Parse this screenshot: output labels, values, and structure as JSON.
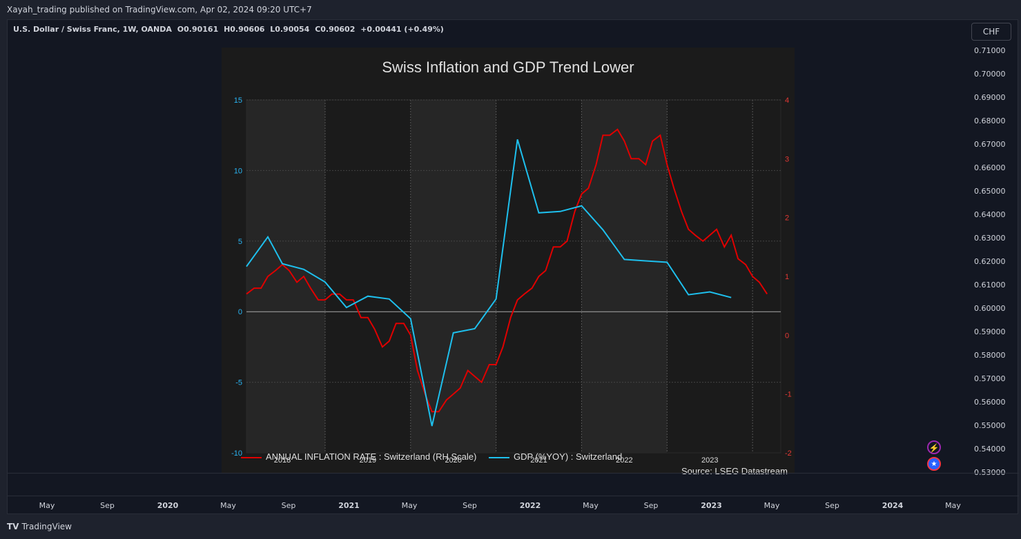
{
  "header": {
    "published": "Xayah_trading published on TradingView.com, Apr 02, 2024 09:20 UTC+7"
  },
  "symbol": {
    "name": "U.S. Dollar / Swiss Franc, 1W, OANDA",
    "open": "O0.90161",
    "high": "H0.90606",
    "low": "L0.90054",
    "close": "C0.90602",
    "change": "+0.00441 (+0.49%)"
  },
  "currency_badge": "CHF",
  "price_scale": [
    "0.71000",
    "0.70000",
    "0.69000",
    "0.68000",
    "0.67000",
    "0.66000",
    "0.65000",
    "0.64000",
    "0.63000",
    "0.62000",
    "0.61000",
    "0.60000",
    "0.59000",
    "0.58000",
    "0.57000",
    "0.56000",
    "0.55000",
    "0.54000",
    "0.53000"
  ],
  "time_axis": [
    {
      "label": "May",
      "year": false
    },
    {
      "label": "Sep",
      "year": false
    },
    {
      "label": "2020",
      "year": true
    },
    {
      "label": "May",
      "year": false
    },
    {
      "label": "Sep",
      "year": false
    },
    {
      "label": "2021",
      "year": true
    },
    {
      "label": "May",
      "year": false
    },
    {
      "label": "Sep",
      "year": false
    },
    {
      "label": "2022",
      "year": true
    },
    {
      "label": "May",
      "year": false
    },
    {
      "label": "Sep",
      "year": false
    },
    {
      "label": "2023",
      "year": true
    },
    {
      "label": "May",
      "year": false
    },
    {
      "label": "Sep",
      "year": false
    },
    {
      "label": "2024",
      "year": true
    },
    {
      "label": "May",
      "year": false
    }
  ],
  "footer": {
    "brand": "TradingView",
    "logo": "TV"
  },
  "icons": {
    "bolt": "bolt-icon",
    "flag": "us-flag-icon"
  },
  "colors": {
    "inflation": "#e00000",
    "gdp": "#1ec0ee",
    "left_axis": "#29b6f6",
    "right_axis": "#e53935"
  },
  "chart_data": {
    "type": "line",
    "title": "Swiss Inflation and GDP Trend Lower",
    "source": "Source: LSEG Datastream",
    "x_labels": [
      "2018",
      "2019",
      "2020",
      "2021",
      "2022",
      "2023"
    ],
    "y_left": {
      "ylim": [
        -10,
        15
      ],
      "ticks": [
        "15",
        "10",
        "5",
        "0",
        "-5",
        "-10"
      ]
    },
    "y_right": {
      "ylim": [
        -2,
        4
      ],
      "ticks": [
        "4",
        "3",
        "2",
        "1",
        "0",
        "-1",
        "-2"
      ]
    },
    "series": [
      {
        "name": "ANNUAL INFLATION RATE : Switzerland (RH Scale)",
        "axis": "right",
        "x": [
          2017.58,
          2017.67,
          2017.75,
          2017.83,
          2017.92,
          2018.0,
          2018.08,
          2018.17,
          2018.25,
          2018.33,
          2018.42,
          2018.5,
          2018.58,
          2018.67,
          2018.75,
          2018.83,
          2018.92,
          2019.0,
          2019.08,
          2019.17,
          2019.25,
          2019.33,
          2019.42,
          2019.5,
          2019.58,
          2019.67,
          2019.75,
          2019.83,
          2019.92,
          2020.0,
          2020.08,
          2020.17,
          2020.25,
          2020.33,
          2020.42,
          2020.5,
          2020.58,
          2020.67,
          2020.75,
          2020.83,
          2020.92,
          2021.0,
          2021.08,
          2021.17,
          2021.25,
          2021.33,
          2021.42,
          2021.5,
          2021.58,
          2021.67,
          2021.75,
          2021.83,
          2021.92,
          2022.0,
          2022.08,
          2022.17,
          2022.25,
          2022.33,
          2022.42,
          2022.5,
          2022.58,
          2022.67,
          2022.75,
          2022.83,
          2022.92,
          2023.0,
          2023.08,
          2023.17,
          2023.25,
          2023.33,
          2023.42,
          2023.5,
          2023.58,
          2023.67
        ],
        "values": [
          0.7,
          0.8,
          0.8,
          1.0,
          1.1,
          1.2,
          1.1,
          0.9,
          1.0,
          0.8,
          0.6,
          0.6,
          0.7,
          0.7,
          0.6,
          0.6,
          0.3,
          0.3,
          0.1,
          -0.2,
          -0.1,
          0.2,
          0.2,
          0.0,
          -0.6,
          -1.0,
          -1.3,
          -1.3,
          -1.1,
          -1.0,
          -0.9,
          -0.6,
          -0.7,
          -0.8,
          -0.5,
          -0.5,
          -0.2,
          0.3,
          0.6,
          0.7,
          0.8,
          1.0,
          1.1,
          1.5,
          1.5,
          1.6,
          2.1,
          2.4,
          2.5,
          2.9,
          3.4,
          3.4,
          3.5,
          3.3,
          3.0,
          3.0,
          2.9,
          3.3,
          3.4,
          2.9,
          2.5,
          2.1,
          1.8,
          1.7,
          1.6,
          1.7,
          1.8,
          1.5,
          1.7,
          1.3,
          1.2,
          1.0,
          0.9,
          0.7
        ],
        "color": "#e00000"
      },
      {
        "name": "GDP (%YOY) : Switzerland",
        "axis": "left",
        "x": [
          2017.58,
          2017.83,
          2018.0,
          2018.25,
          2018.5,
          2018.75,
          2019.0,
          2019.25,
          2019.5,
          2019.75,
          2020.0,
          2020.25,
          2020.5,
          2020.75,
          2021.0,
          2021.25,
          2021.5,
          2021.75,
          2022.0,
          2022.25,
          2022.5,
          2022.75,
          2023.0,
          2023.25
        ],
        "values": [
          3.2,
          5.3,
          3.4,
          3.0,
          2.1,
          0.3,
          1.1,
          0.9,
          -0.5,
          -8.1,
          -1.5,
          -1.2,
          0.9,
          12.2,
          7.0,
          7.1,
          7.5,
          5.8,
          3.7,
          3.6,
          3.5,
          1.2,
          1.4,
          1.0
        ],
        "color": "#1ec0ee"
      }
    ],
    "grid": true,
    "legend": "bottom"
  }
}
